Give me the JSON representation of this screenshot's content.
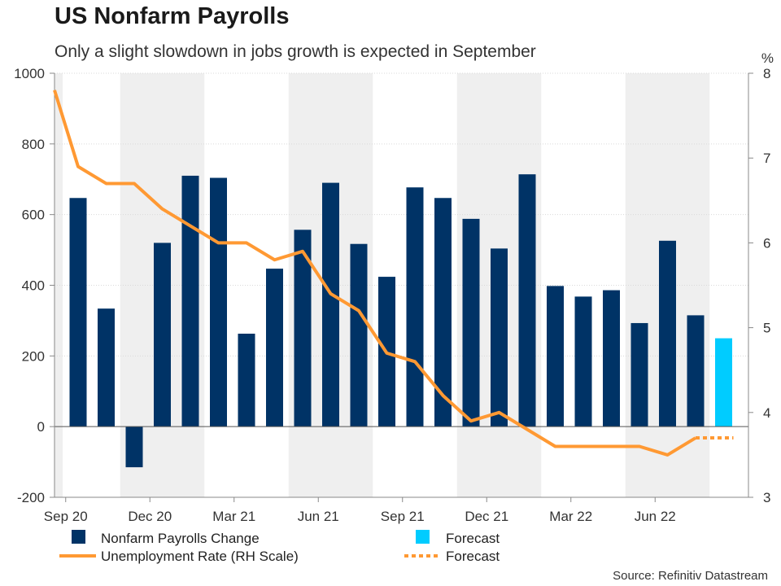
{
  "title": "US Nonfarm Payrolls",
  "subtitle": "Only a slight slowdown in jobs growth is expected in September",
  "source": "Source: Refinitiv Datastream",
  "colors": {
    "bar": "#003366",
    "forecast_bar": "#00ccff",
    "line": "#ff9933",
    "shade": "#efefef",
    "grid": "#d9d9d9"
  },
  "chart_data": {
    "type": "bar",
    "title": "US Nonfarm Payrolls",
    "months": [
      "Aug 20",
      "Sep 20",
      "Oct 20",
      "Nov 20",
      "Dec 20",
      "Jan 21",
      "Feb 21",
      "Mar 21",
      "Apr 21",
      "May 21",
      "Jun 21",
      "Jul 21",
      "Aug 21",
      "Sep 21",
      "Oct 21",
      "Nov 21",
      "Dec 21",
      "Jan 22",
      "Feb 22",
      "Mar 22",
      "Apr 22",
      "May 22",
      "Jun 22",
      "Jul 22",
      "Aug 22",
      "Sep 22"
    ],
    "x_tick_labels": [
      "Sep 20",
      "Dec 20",
      "Mar 21",
      "Jun 21",
      "Sep 21",
      "Dec 21",
      "Mar 22",
      "Jun 22"
    ],
    "series": [
      {
        "name": "Nonfarm Payrolls Change",
        "axis": "left",
        "values": [
          null,
          647,
          334,
          -115,
          520,
          710,
          704,
          263,
          447,
          557,
          690,
          517,
          424,
          677,
          647,
          588,
          504,
          714,
          398,
          368,
          386,
          293,
          526,
          315,
          null,
          null
        ]
      },
      {
        "name": "Forecast",
        "kind": "forecast-bar",
        "axis": "left",
        "values": [
          null,
          null,
          null,
          null,
          null,
          null,
          null,
          null,
          null,
          null,
          null,
          null,
          null,
          null,
          null,
          null,
          null,
          null,
          null,
          null,
          null,
          null,
          null,
          null,
          250,
          null
        ]
      },
      {
        "name": "Unemployment Rate (RH Scale)",
        "axis": "right",
        "values": [
          7.8,
          6.9,
          6.7,
          6.7,
          6.4,
          6.2,
          6.0,
          6.0,
          5.8,
          5.9,
          5.4,
          5.2,
          4.7,
          4.6,
          4.2,
          3.9,
          4.0,
          3.8,
          3.6,
          3.6,
          3.6,
          3.6,
          3.5,
          3.7,
          null,
          null
        ]
      },
      {
        "name": "Forecast",
        "kind": "forecast-line",
        "axis": "right",
        "values": [
          null,
          null,
          null,
          null,
          null,
          null,
          null,
          null,
          null,
          null,
          null,
          null,
          null,
          null,
          null,
          null,
          null,
          null,
          null,
          null,
          null,
          null,
          null,
          3.7,
          3.7,
          null
        ]
      }
    ],
    "y_left": {
      "min": -200,
      "max": 1000,
      "ticks": [
        -200,
        0,
        200,
        400,
        600,
        800,
        1000
      ]
    },
    "y_right": {
      "label": "%",
      "min": 3,
      "max": 8,
      "ticks": [
        3,
        4,
        5,
        6,
        7,
        8
      ]
    },
    "legend": {
      "bars_label": "Nonfarm Payrolls Change",
      "forecast_bar_label": "Forecast",
      "line_label": "Unemployment Rate (RH Scale)",
      "forecast_line_label": "Forecast"
    }
  }
}
